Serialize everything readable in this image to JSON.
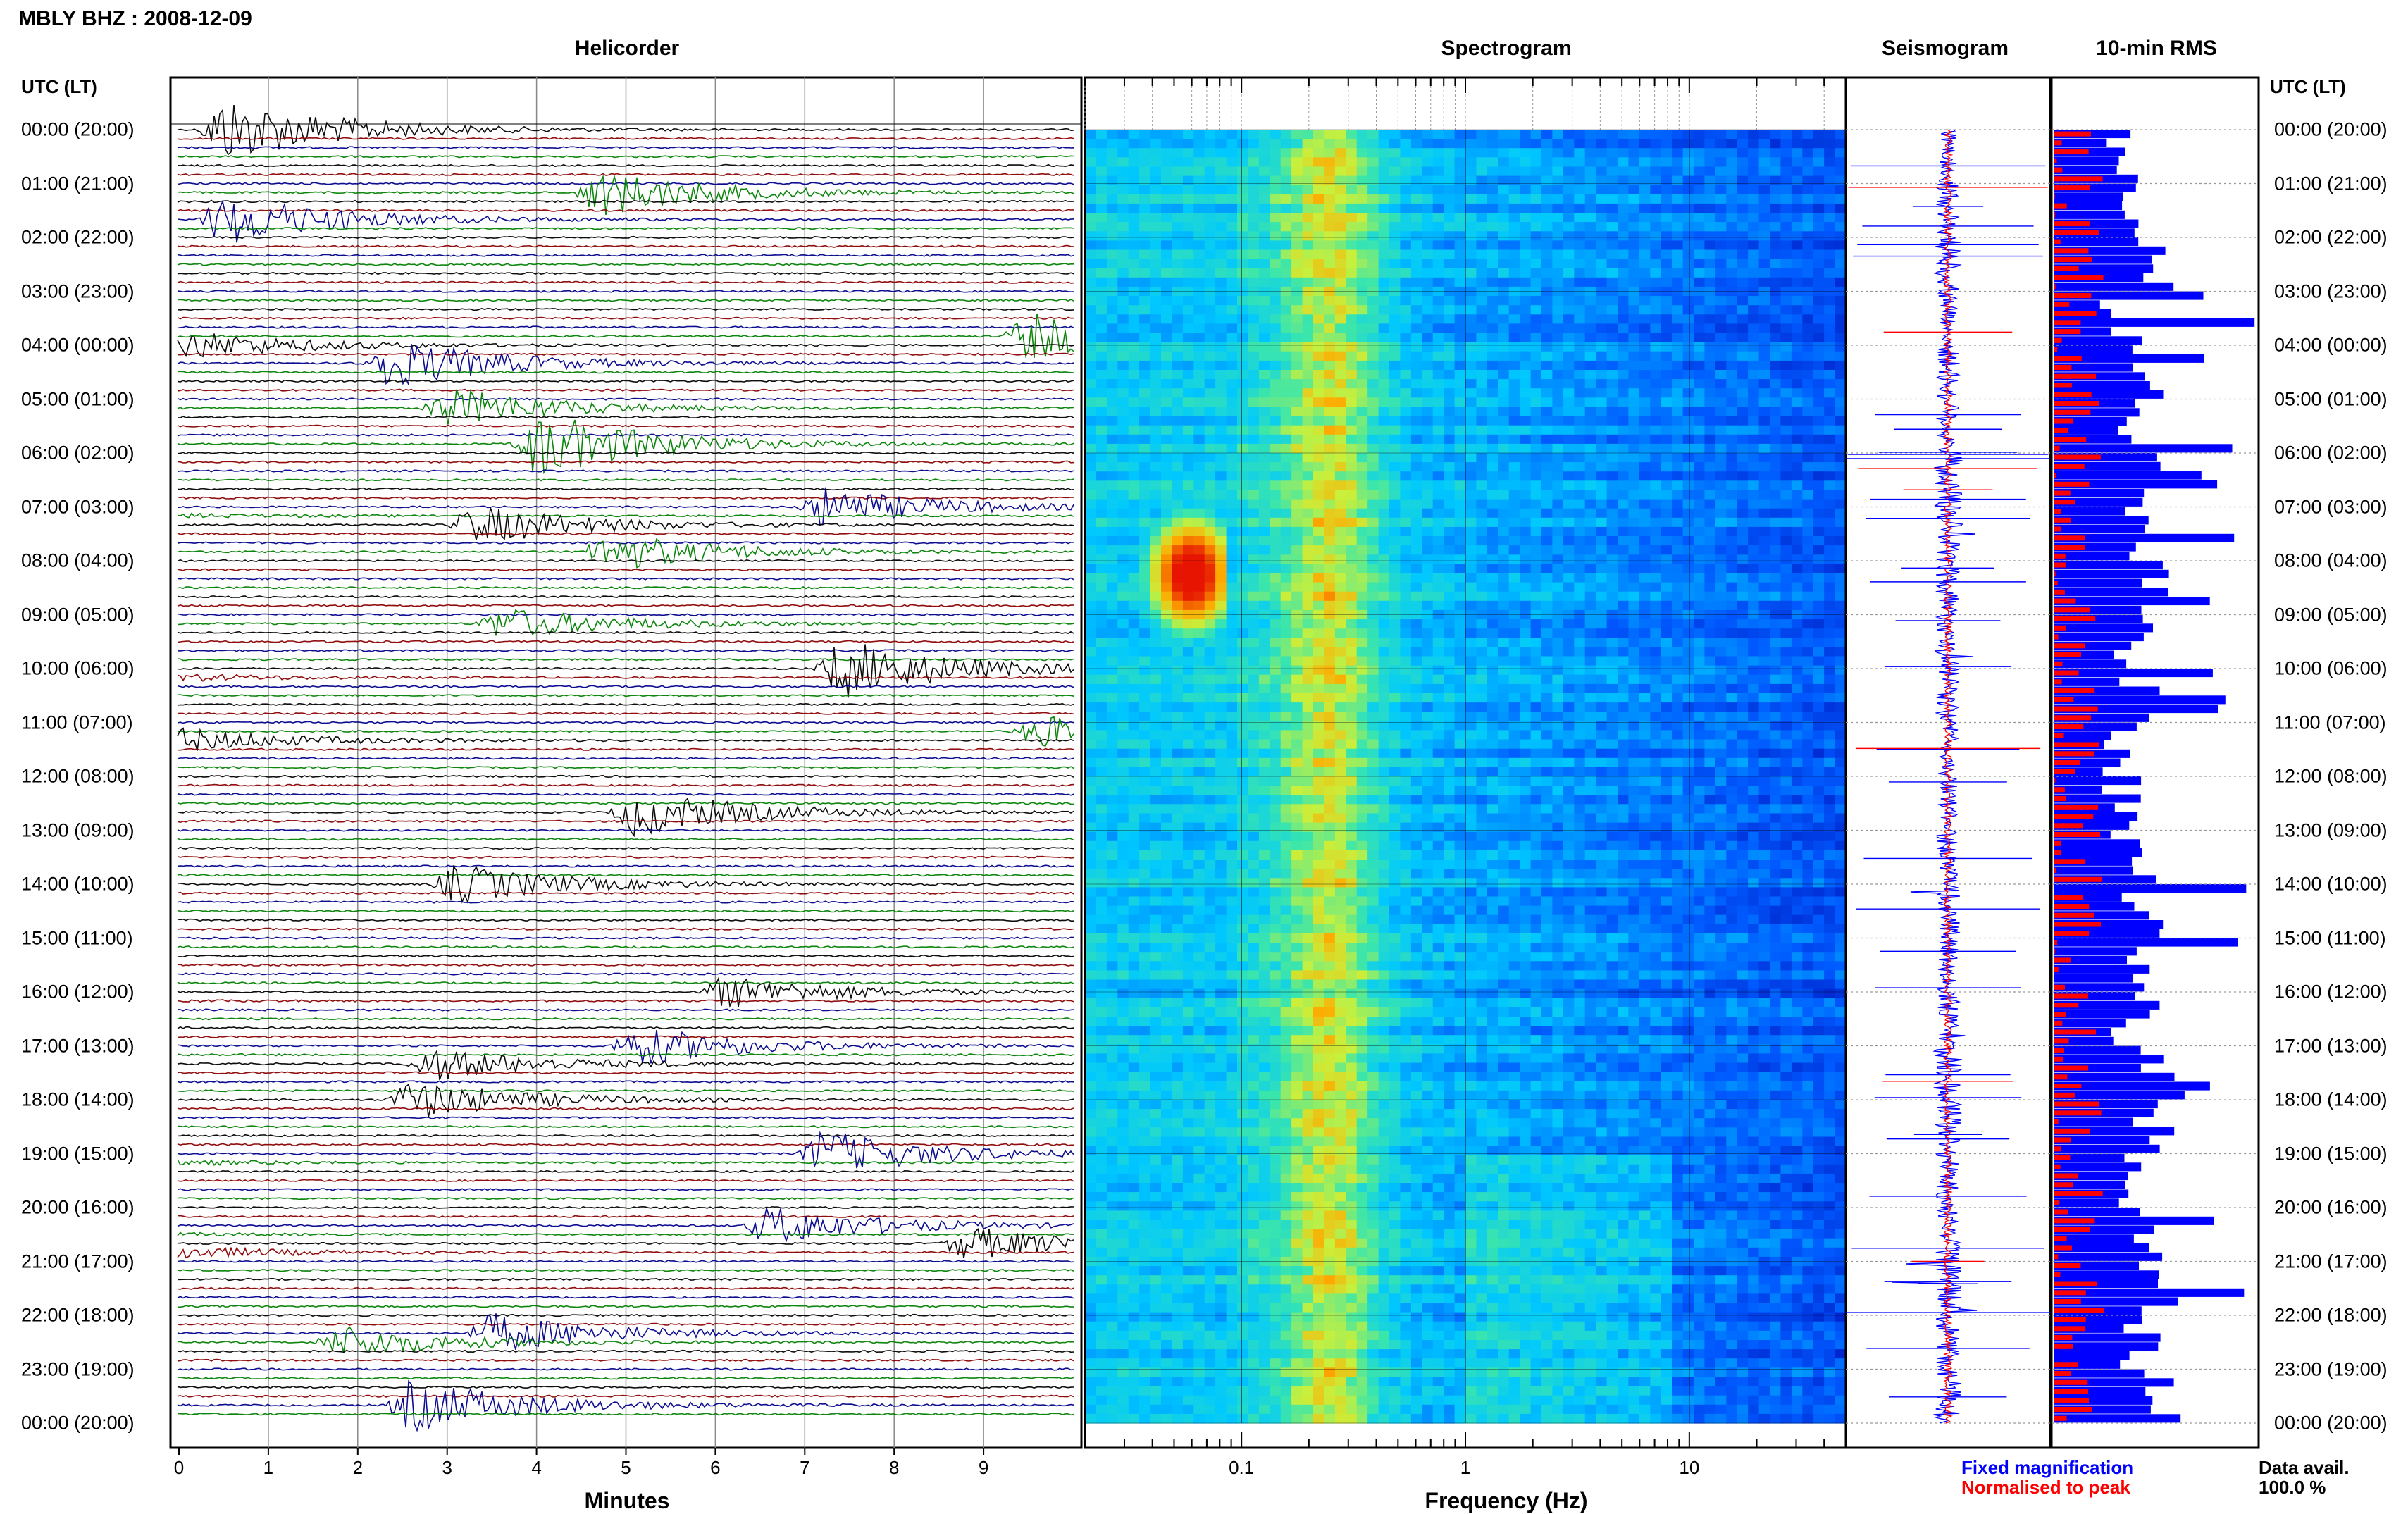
{
  "header": {
    "title": "MBLY BHZ : 2008-12-09"
  },
  "panels": {
    "helicorder": "Helicorder",
    "spectrogram": "Spectrogram",
    "seismogram": "Seismogram",
    "rms": "10-min RMS"
  },
  "axis_titles": {
    "minutes": "Minutes",
    "frequency": "Frequency (Hz)",
    "utc_left": "UTC (LT)",
    "utc_right": "UTC (LT)"
  },
  "legend": {
    "fixed": "Fixed magnification",
    "normalised": "Normalised to peak",
    "fixed_color": "#0000ff",
    "normalised_color": "#ff0000"
  },
  "availability": {
    "label": "Data avail.",
    "value": "100.0 %"
  },
  "colors": {
    "black": "#000000",
    "red": "#8b0000",
    "blue": "#00008b",
    "green": "#008000"
  },
  "chart_data": {
    "type": "heatmap",
    "title": "MBLY BHZ : 2008-12-09",
    "hour_labels": [
      "00:00 (20:00)",
      "01:00 (21:00)",
      "02:00 (22:00)",
      "03:00 (23:00)",
      "04:00 (00:00)",
      "05:00 (01:00)",
      "06:00 (02:00)",
      "07:00 (03:00)",
      "08:00 (04:00)",
      "09:00 (05:00)",
      "10:00 (06:00)",
      "11:00 (07:00)",
      "12:00 (08:00)",
      "13:00 (09:00)",
      "14:00 (10:00)",
      "15:00 (11:00)",
      "16:00 (12:00)",
      "17:00 (13:00)",
      "18:00 (14:00)",
      "19:00 (15:00)",
      "20:00 (16:00)",
      "21:00 (17:00)",
      "22:00 (18:00)",
      "23:00 (19:00)",
      "00:00 (20:00)"
    ],
    "helicorder": {
      "xlabel": "Minutes",
      "xlim": [
        0,
        10
      ],
      "xticks": [
        "0",
        "1",
        "2",
        "3",
        "4",
        "5",
        "6",
        "7",
        "8",
        "9"
      ],
      "lines": 144,
      "line_minutes": 10,
      "events": [
        {
          "time_utc": "00:00",
          "minute": 0.5,
          "amp": 1.0
        },
        {
          "time_utc": "01:40",
          "minute": 0.5,
          "amp": 0.8
        },
        {
          "time_utc": "01:10",
          "minute": 4.7,
          "amp": 0.7
        },
        {
          "time_utc": "03:50",
          "minute": 9.5,
          "amp": 0.7
        },
        {
          "time_utc": "04:20",
          "minute": 2.3,
          "amp": 0.8
        },
        {
          "time_utc": "05:10",
          "minute": 3.0,
          "amp": 0.6
        },
        {
          "time_utc": "05:50",
          "minute": 4.0,
          "amp": 1.0
        },
        {
          "time_utc": "07:00",
          "minute": 7.2,
          "amp": 0.6
        },
        {
          "time_utc": "07:20",
          "minute": 3.3,
          "amp": 0.6
        },
        {
          "time_utc": "07:50",
          "minute": 4.8,
          "amp": 0.6
        },
        {
          "time_utc": "09:10",
          "minute": 3.6,
          "amp": 0.5
        },
        {
          "time_utc": "10:00",
          "minute": 7.4,
          "amp": 0.9
        },
        {
          "time_utc": "11:10",
          "minute": 9.6,
          "amp": 0.5
        },
        {
          "time_utc": "12:40",
          "minute": 5.1,
          "amp": 0.7
        },
        {
          "time_utc": "14:00",
          "minute": 3.1,
          "amp": 0.6
        },
        {
          "time_utc": "16:00",
          "minute": 6.1,
          "amp": 0.5
        },
        {
          "time_utc": "17:00",
          "minute": 5.1,
          "amp": 0.6
        },
        {
          "time_utc": "17:20",
          "minute": 2.8,
          "amp": 0.5
        },
        {
          "time_utc": "18:00",
          "minute": 2.6,
          "amp": 0.6
        },
        {
          "time_utc": "19:00",
          "minute": 7.2,
          "amp": 0.7
        },
        {
          "time_utc": "20:20",
          "minute": 6.6,
          "amp": 0.6
        },
        {
          "time_utc": "20:40",
          "minute": 8.8,
          "amp": 0.5
        },
        {
          "time_utc": "22:30",
          "minute": 1.8,
          "amp": 0.5
        },
        {
          "time_utc": "22:20",
          "minute": 3.5,
          "amp": 0.6
        },
        {
          "time_utc": "23:40",
          "minute": 2.6,
          "amp": 0.8
        }
      ]
    },
    "spectrogram": {
      "xlabel": "Frequency (Hz)",
      "xscale": "log",
      "xlim": [
        0.02,
        50
      ],
      "xticks": [
        "0.1",
        "1",
        "10"
      ],
      "hotspot": {
        "freq_hz": [
          0.04,
          0.08
        ],
        "time_utc": [
          "07:00",
          "09:30"
        ]
      }
    },
    "rms_hourly_fixed": [
      0.2,
      0.6,
      0.7,
      0.3,
      0.6,
      0.6,
      0.9,
      0.7,
      0.8,
      0.5,
      0.6,
      0.4,
      0.3,
      0.5,
      0.6,
      0.4,
      0.5,
      0.9,
      0.8,
      0.6,
      0.7,
      0.9,
      0.6,
      0.9,
      0.4
    ],
    "grid": true
  }
}
